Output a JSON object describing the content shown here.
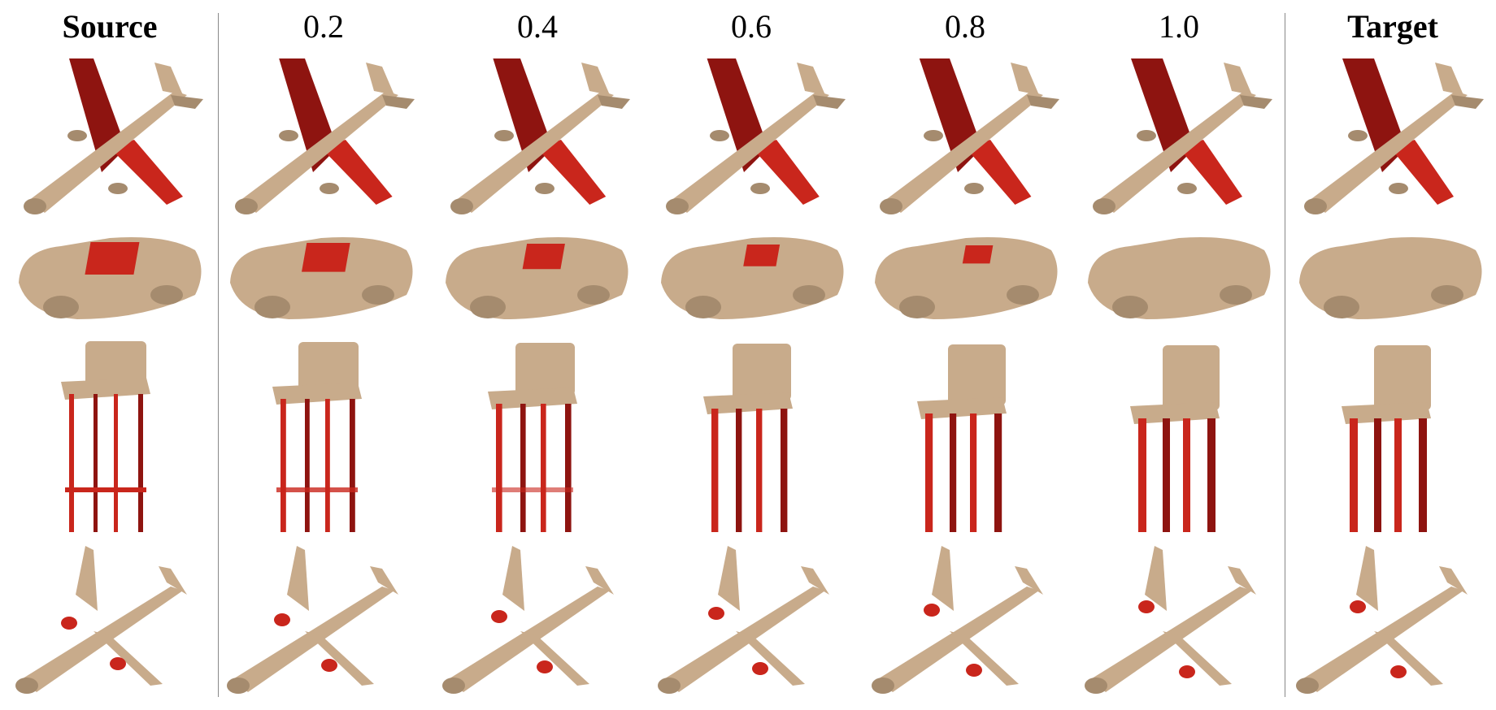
{
  "columns": [
    {
      "key": "source",
      "label": "Source",
      "bold": true
    },
    {
      "key": "t02",
      "label": "0.2",
      "bold": false
    },
    {
      "key": "t04",
      "label": "0.4",
      "bold": false
    },
    {
      "key": "t06",
      "label": "0.6",
      "bold": false
    },
    {
      "key": "t08",
      "label": "0.8",
      "bold": false
    },
    {
      "key": "t10",
      "label": "1.0",
      "bold": false
    },
    {
      "key": "target",
      "label": "Target",
      "bold": true
    }
  ],
  "rows": [
    {
      "shape": "airplane-wings-red",
      "name": "airplane-1"
    },
    {
      "shape": "car-roof-red",
      "name": "car"
    },
    {
      "shape": "chair-legs-red",
      "name": "chair"
    },
    {
      "shape": "airplane-engines-red",
      "name": "airplane-2"
    }
  ],
  "colors": {
    "body": "#c8ab8b",
    "body_shadow": "#a58b6e",
    "part": "#c9261c",
    "part_dark": "#8e1410",
    "separator": "#888888"
  }
}
